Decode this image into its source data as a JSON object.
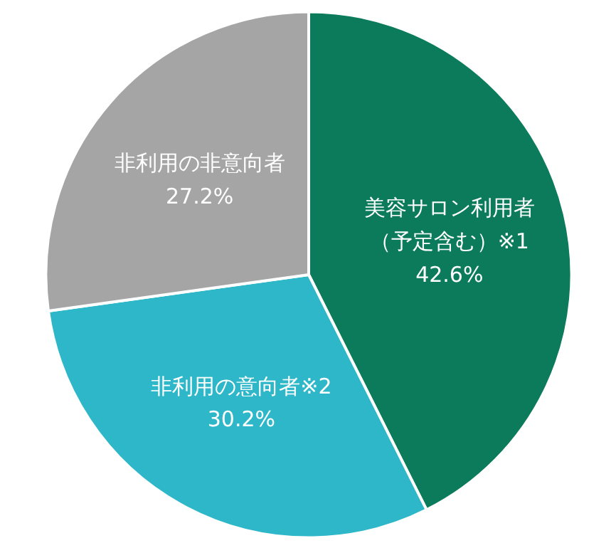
{
  "chart_data": {
    "type": "pie",
    "categories": [
      "美容サロン利用者（予定含む）※1",
      "非利用の意向者※2",
      "非利用の非意向者"
    ],
    "values": [
      42.6,
      30.2,
      27.2
    ],
    "colors": [
      "#0b7b5b",
      "#2db7c9",
      "#a5a5a5"
    ],
    "value_labels": [
      "42.6%",
      "30.2%",
      "27.2%"
    ]
  }
}
